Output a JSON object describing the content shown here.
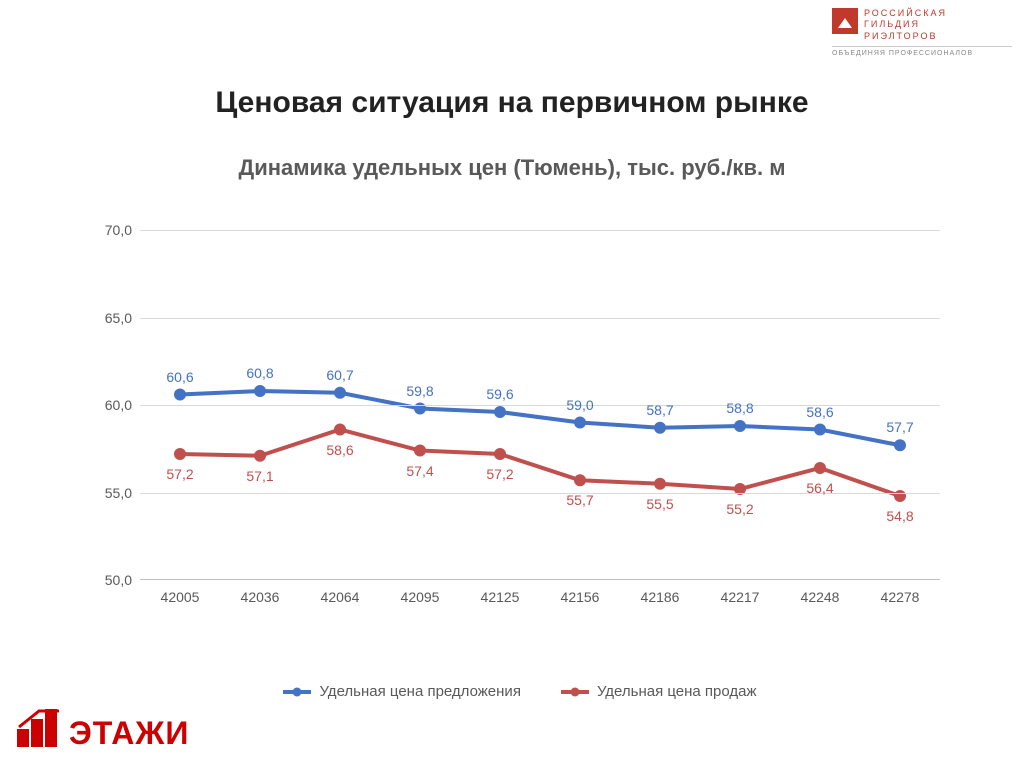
{
  "logo_top": {
    "line1": "РОССИЙСКАЯ",
    "line2": "ГИЛЬДИЯ",
    "line3": "РИЭЛТОРОВ",
    "sub": "ОБЪЕДИНЯЯ ПРОФЕССИОНАЛОВ",
    "mark_color": "#c0392b",
    "text_color": "#c0392b",
    "sub_color": "#888888"
  },
  "logo_bottom": {
    "text": "ЭТАЖИ",
    "color": "#cc0000"
  },
  "title": "Ценовая ситуация на первичном рынке",
  "subtitle": "Динамика удельных цен (Тюмень), тыс. руб./кв. м",
  "title_fontsize": 30,
  "subtitle_fontsize": 22,
  "subtitle_color": "#595959",
  "chart": {
    "type": "line",
    "background_color": "#ffffff",
    "grid_color": "#d9d9d9",
    "axis_color": "#bfbfbf",
    "label_color": "#595959",
    "label_fontsize": 14,
    "data_label_fontsize": 14,
    "ylim": [
      50.0,
      70.0
    ],
    "ytick_step": 5.0,
    "y_ticks": [
      "50,0",
      "55,0",
      "60,0",
      "65,0",
      "70,0"
    ],
    "categories": [
      "42005",
      "42036",
      "42064",
      "42095",
      "42125",
      "42156",
      "42186",
      "42217",
      "42248",
      "42278"
    ],
    "marker_radius": 6,
    "line_width": 4,
    "series": [
      {
        "name": "Удельная цена предложения",
        "color": "#4472c4",
        "values": [
          60.6,
          60.8,
          60.7,
          59.8,
          59.6,
          59.0,
          58.7,
          58.8,
          58.6,
          57.7
        ],
        "labels": [
          "60,6",
          "60,8",
          "60,7",
          "59,8",
          "59,6",
          "59,0",
          "58,7",
          "58,8",
          "58,6",
          "57,7"
        ],
        "label_position": "above"
      },
      {
        "name": "Удельная цена продаж",
        "color": "#c0504d",
        "values": [
          57.2,
          57.1,
          58.6,
          57.4,
          57.2,
          55.7,
          55.5,
          55.2,
          56.4,
          54.8
        ],
        "labels": [
          "57,2",
          "57,1",
          "58,6",
          "57,4",
          "57,2",
          "55,7",
          "55,5",
          "55,2",
          "56,4",
          "54,8"
        ],
        "label_position": "below"
      }
    ],
    "legend_fontsize": 15
  }
}
